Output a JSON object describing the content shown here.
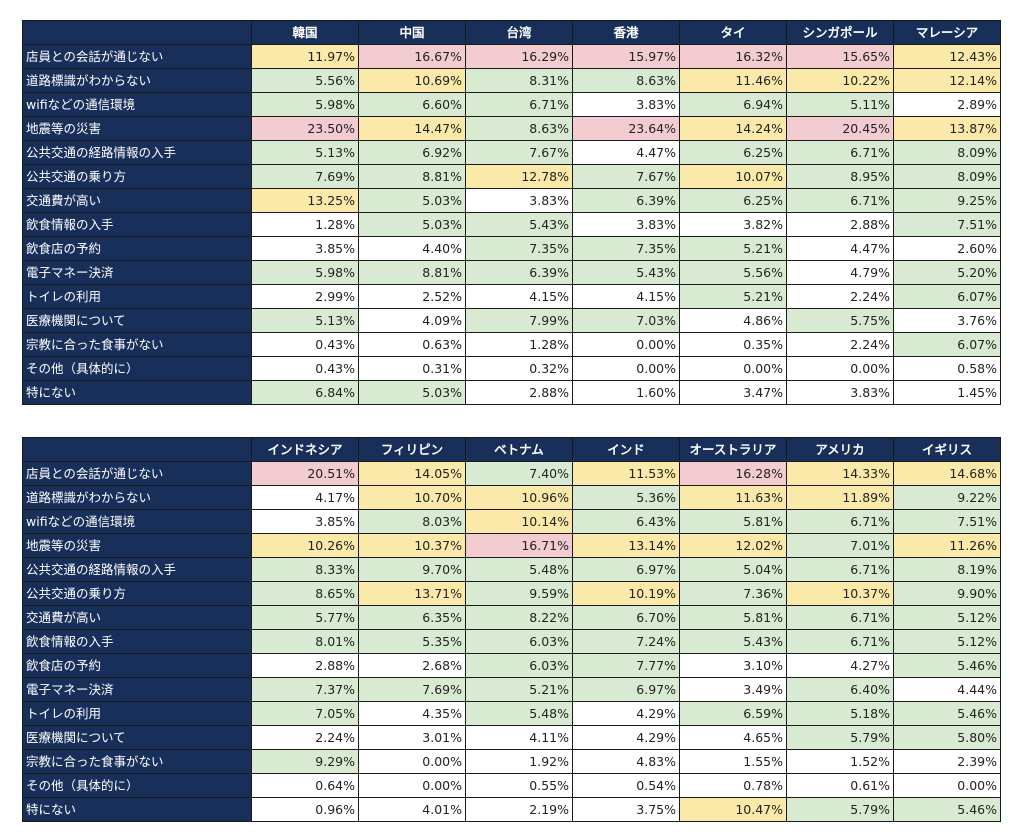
{
  "colors": {
    "header_bg": "#182f5a",
    "high": "#f3ccd1",
    "mid": "#fae9a8",
    "low": "#d8ebd2",
    "none": "#ffffff"
  },
  "row_labels": [
    "店員との会話が通じない",
    "道路標識がわからない",
    "wifiなどの通信環境",
    "地震等の災害",
    "公共交通の経路情報の入手",
    "公共交通の乗り方",
    "交通費が高い",
    "飲食情報の入手",
    "飲食店の予約",
    "電子マネー決済",
    "トイレの利用",
    "医療機関について",
    "宗教に合った食事がない",
    "その他（具体的に）",
    "特にない"
  ],
  "tables": [
    {
      "columns": [
        "韓国",
        "中国",
        "台湾",
        "香港",
        "タイ",
        "シンガポール",
        "マレーシア"
      ],
      "rows": [
        [
          [
            "11.97%",
            "y"
          ],
          [
            "16.67%",
            "p"
          ],
          [
            "16.29%",
            "p"
          ],
          [
            "15.97%",
            "p"
          ],
          [
            "16.32%",
            "p"
          ],
          [
            "15.65%",
            "p"
          ],
          [
            "12.43%",
            "y"
          ]
        ],
        [
          [
            "5.56%",
            "g"
          ],
          [
            "10.69%",
            "y"
          ],
          [
            "8.31%",
            "g"
          ],
          [
            "8.63%",
            "g"
          ],
          [
            "11.46%",
            "y"
          ],
          [
            "10.22%",
            "y"
          ],
          [
            "12.14%",
            "y"
          ]
        ],
        [
          [
            "5.98%",
            "g"
          ],
          [
            "6.60%",
            "g"
          ],
          [
            "6.71%",
            "g"
          ],
          [
            "3.83%",
            "w"
          ],
          [
            "6.94%",
            "g"
          ],
          [
            "5.11%",
            "g"
          ],
          [
            "2.89%",
            "w"
          ]
        ],
        [
          [
            "23.50%",
            "p"
          ],
          [
            "14.47%",
            "y"
          ],
          [
            "8.63%",
            "g"
          ],
          [
            "23.64%",
            "p"
          ],
          [
            "14.24%",
            "y"
          ],
          [
            "20.45%",
            "p"
          ],
          [
            "13.87%",
            "y"
          ]
        ],
        [
          [
            "5.13%",
            "g"
          ],
          [
            "6.92%",
            "g"
          ],
          [
            "7.67%",
            "g"
          ],
          [
            "4.47%",
            "w"
          ],
          [
            "6.25%",
            "g"
          ],
          [
            "6.71%",
            "g"
          ],
          [
            "8.09%",
            "g"
          ]
        ],
        [
          [
            "7.69%",
            "g"
          ],
          [
            "8.81%",
            "g"
          ],
          [
            "12.78%",
            "y"
          ],
          [
            "7.67%",
            "g"
          ],
          [
            "10.07%",
            "y"
          ],
          [
            "8.95%",
            "g"
          ],
          [
            "8.09%",
            "g"
          ]
        ],
        [
          [
            "13.25%",
            "y"
          ],
          [
            "5.03%",
            "g"
          ],
          [
            "3.83%",
            "w"
          ],
          [
            "6.39%",
            "g"
          ],
          [
            "6.25%",
            "g"
          ],
          [
            "6.71%",
            "g"
          ],
          [
            "9.25%",
            "g"
          ]
        ],
        [
          [
            "1.28%",
            "w"
          ],
          [
            "5.03%",
            "g"
          ],
          [
            "5.43%",
            "g"
          ],
          [
            "3.83%",
            "w"
          ],
          [
            "3.82%",
            "w"
          ],
          [
            "2.88%",
            "w"
          ],
          [
            "7.51%",
            "g"
          ]
        ],
        [
          [
            "3.85%",
            "w"
          ],
          [
            "4.40%",
            "w"
          ],
          [
            "7.35%",
            "g"
          ],
          [
            "7.35%",
            "g"
          ],
          [
            "5.21%",
            "g"
          ],
          [
            "4.47%",
            "w"
          ],
          [
            "2.60%",
            "w"
          ]
        ],
        [
          [
            "5.98%",
            "g"
          ],
          [
            "8.81%",
            "g"
          ],
          [
            "6.39%",
            "g"
          ],
          [
            "5.43%",
            "g"
          ],
          [
            "5.56%",
            "g"
          ],
          [
            "4.79%",
            "w"
          ],
          [
            "5.20%",
            "g"
          ]
        ],
        [
          [
            "2.99%",
            "w"
          ],
          [
            "2.52%",
            "w"
          ],
          [
            "4.15%",
            "w"
          ],
          [
            "4.15%",
            "w"
          ],
          [
            "5.21%",
            "g"
          ],
          [
            "2.24%",
            "w"
          ],
          [
            "6.07%",
            "g"
          ]
        ],
        [
          [
            "5.13%",
            "g"
          ],
          [
            "4.09%",
            "w"
          ],
          [
            "7.99%",
            "g"
          ],
          [
            "7.03%",
            "g"
          ],
          [
            "4.86%",
            "w"
          ],
          [
            "5.75%",
            "g"
          ],
          [
            "3.76%",
            "w"
          ]
        ],
        [
          [
            "0.43%",
            "w"
          ],
          [
            "0.63%",
            "w"
          ],
          [
            "1.28%",
            "w"
          ],
          [
            "0.00%",
            "w"
          ],
          [
            "0.35%",
            "w"
          ],
          [
            "2.24%",
            "w"
          ],
          [
            "6.07%",
            "g"
          ]
        ],
        [
          [
            "0.43%",
            "w"
          ],
          [
            "0.31%",
            "w"
          ],
          [
            "0.32%",
            "w"
          ],
          [
            "0.00%",
            "w"
          ],
          [
            "0.00%",
            "w"
          ],
          [
            "0.00%",
            "w"
          ],
          [
            "0.58%",
            "w"
          ]
        ],
        [
          [
            "6.84%",
            "g"
          ],
          [
            "5.03%",
            "g"
          ],
          [
            "2.88%",
            "w"
          ],
          [
            "1.60%",
            "w"
          ],
          [
            "3.47%",
            "w"
          ],
          [
            "3.83%",
            "w"
          ],
          [
            "1.45%",
            "w"
          ]
        ]
      ]
    },
    {
      "columns": [
        "インドネシア",
        "フィリピン",
        "ベトナム",
        "インド",
        "オーストラリア",
        "アメリカ",
        "イギリス"
      ],
      "rows": [
        [
          [
            "20.51%",
            "p"
          ],
          [
            "14.05%",
            "y"
          ],
          [
            "7.40%",
            "g"
          ],
          [
            "11.53%",
            "y"
          ],
          [
            "16.28%",
            "p"
          ],
          [
            "14.33%",
            "y"
          ],
          [
            "14.68%",
            "y"
          ]
        ],
        [
          [
            "4.17%",
            "w"
          ],
          [
            "10.70%",
            "y"
          ],
          [
            "10.96%",
            "y"
          ],
          [
            "5.36%",
            "g"
          ],
          [
            "11.63%",
            "y"
          ],
          [
            "11.89%",
            "y"
          ],
          [
            "9.22%",
            "g"
          ]
        ],
        [
          [
            "3.85%",
            "w"
          ],
          [
            "8.03%",
            "g"
          ],
          [
            "10.14%",
            "y"
          ],
          [
            "6.43%",
            "g"
          ],
          [
            "5.81%",
            "g"
          ],
          [
            "6.71%",
            "g"
          ],
          [
            "7.51%",
            "g"
          ]
        ],
        [
          [
            "10.26%",
            "y"
          ],
          [
            "10.37%",
            "y"
          ],
          [
            "16.71%",
            "p"
          ],
          [
            "13.14%",
            "y"
          ],
          [
            "12.02%",
            "y"
          ],
          [
            "7.01%",
            "g"
          ],
          [
            "11.26%",
            "y"
          ]
        ],
        [
          [
            "8.33%",
            "g"
          ],
          [
            "9.70%",
            "g"
          ],
          [
            "5.48%",
            "g"
          ],
          [
            "6.97%",
            "g"
          ],
          [
            "5.04%",
            "g"
          ],
          [
            "6.71%",
            "g"
          ],
          [
            "8.19%",
            "g"
          ]
        ],
        [
          [
            "8.65%",
            "g"
          ],
          [
            "13.71%",
            "y"
          ],
          [
            "9.59%",
            "g"
          ],
          [
            "10.19%",
            "y"
          ],
          [
            "7.36%",
            "g"
          ],
          [
            "10.37%",
            "y"
          ],
          [
            "9.90%",
            "g"
          ]
        ],
        [
          [
            "5.77%",
            "g"
          ],
          [
            "6.35%",
            "g"
          ],
          [
            "8.22%",
            "g"
          ],
          [
            "6.70%",
            "g"
          ],
          [
            "5.81%",
            "g"
          ],
          [
            "6.71%",
            "g"
          ],
          [
            "5.12%",
            "g"
          ]
        ],
        [
          [
            "8.01%",
            "g"
          ],
          [
            "5.35%",
            "g"
          ],
          [
            "6.03%",
            "g"
          ],
          [
            "7.24%",
            "g"
          ],
          [
            "5.43%",
            "g"
          ],
          [
            "6.71%",
            "g"
          ],
          [
            "5.12%",
            "g"
          ]
        ],
        [
          [
            "2.88%",
            "w"
          ],
          [
            "2.68%",
            "w"
          ],
          [
            "6.03%",
            "g"
          ],
          [
            "7.77%",
            "g"
          ],
          [
            "3.10%",
            "w"
          ],
          [
            "4.27%",
            "w"
          ],
          [
            "5.46%",
            "g"
          ]
        ],
        [
          [
            "7.37%",
            "g"
          ],
          [
            "7.69%",
            "g"
          ],
          [
            "5.21%",
            "g"
          ],
          [
            "6.97%",
            "g"
          ],
          [
            "3.49%",
            "w"
          ],
          [
            "6.40%",
            "g"
          ],
          [
            "4.44%",
            "w"
          ]
        ],
        [
          [
            "7.05%",
            "g"
          ],
          [
            "4.35%",
            "w"
          ],
          [
            "5.48%",
            "g"
          ],
          [
            "4.29%",
            "w"
          ],
          [
            "6.59%",
            "g"
          ],
          [
            "5.18%",
            "g"
          ],
          [
            "5.46%",
            "g"
          ]
        ],
        [
          [
            "2.24%",
            "w"
          ],
          [
            "3.01%",
            "w"
          ],
          [
            "4.11%",
            "w"
          ],
          [
            "4.29%",
            "w"
          ],
          [
            "4.65%",
            "w"
          ],
          [
            "5.79%",
            "g"
          ],
          [
            "5.80%",
            "g"
          ]
        ],
        [
          [
            "9.29%",
            "g"
          ],
          [
            "0.00%",
            "w"
          ],
          [
            "1.92%",
            "w"
          ],
          [
            "4.83%",
            "w"
          ],
          [
            "1.55%",
            "w"
          ],
          [
            "1.52%",
            "w"
          ],
          [
            "2.39%",
            "w"
          ]
        ],
        [
          [
            "0.64%",
            "w"
          ],
          [
            "0.00%",
            "w"
          ],
          [
            "0.55%",
            "w"
          ],
          [
            "0.54%",
            "w"
          ],
          [
            "0.78%",
            "w"
          ],
          [
            "0.61%",
            "w"
          ],
          [
            "0.00%",
            "w"
          ]
        ],
        [
          [
            "0.96%",
            "w"
          ],
          [
            "4.01%",
            "w"
          ],
          [
            "2.19%",
            "w"
          ],
          [
            "3.75%",
            "w"
          ],
          [
            "10.47%",
            "y"
          ],
          [
            "5.79%",
            "g"
          ],
          [
            "5.46%",
            "g"
          ]
        ]
      ]
    }
  ]
}
